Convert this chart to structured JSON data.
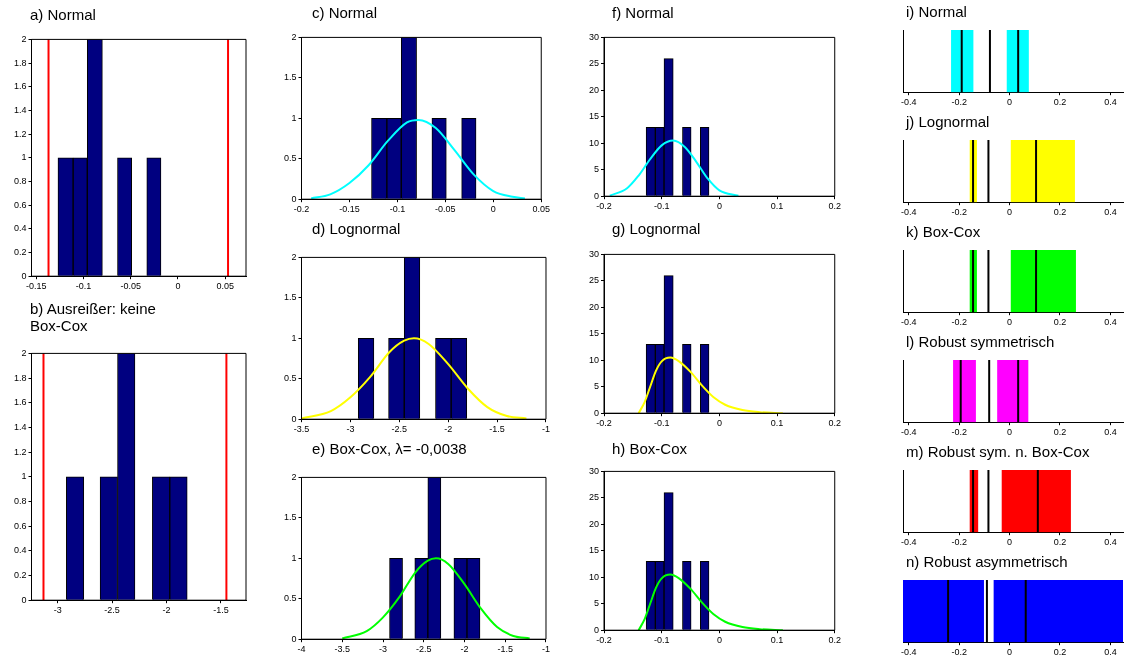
{
  "chart_data": [
    {
      "type": "histogram",
      "title": "a) Normal",
      "bins": [
        -0.127,
        -0.111,
        -0.096,
        -0.08,
        -0.064,
        -0.049,
        -0.033,
        -0.018
      ],
      "values": [
        1,
        1,
        2,
        0,
        1,
        0,
        1
      ],
      "color": "#000080",
      "xlim": [
        -0.155,
        0.072
      ],
      "xticks": [
        -0.15,
        -0.1,
        -0.05,
        0,
        0.05
      ],
      "ylim": [
        0,
        2
      ],
      "yticks": [
        0,
        0.2,
        0.4,
        0.6,
        0.8,
        1,
        1.2,
        1.4,
        1.6,
        1.8,
        2
      ],
      "grid": false,
      "ref_lines": [
        {
          "axis": "x",
          "value": -0.137,
          "color": "#ff0000"
        },
        {
          "axis": "x",
          "value": 0.053,
          "color": "#ff0000"
        }
      ]
    },
    {
      "type": "histogram",
      "title": "b) Ausreißer: keine Box-Cox",
      "bins": [
        -2.92,
        -2.76,
        -2.61,
        -2.45,
        -2.29,
        -2.13,
        -1.97,
        -1.81
      ],
      "values": [
        1,
        0,
        1,
        2,
        0,
        1,
        1
      ],
      "color": "#000080",
      "xlim": [
        -3.24,
        -1.27
      ],
      "xticks": [
        -3,
        -2.5,
        -2,
        -1.5
      ],
      "ylim": [
        0,
        2
      ],
      "yticks": [
        0,
        0.2,
        0.4,
        0.6,
        0.8,
        1,
        1.2,
        1.4,
        1.6,
        1.8,
        2
      ],
      "grid": false,
      "ref_lines": [
        {
          "axis": "x",
          "value": -3.13,
          "color": "#ff0000"
        },
        {
          "axis": "x",
          "value": -1.45,
          "color": "#ff0000"
        }
      ]
    },
    {
      "type": "histogram",
      "title": "c) Normal",
      "bins": [
        -0.127,
        -0.111,
        -0.096,
        -0.08,
        -0.064,
        -0.049,
        -0.033,
        -0.018
      ],
      "values": [
        1,
        1,
        2,
        0,
        1,
        0,
        1
      ],
      "color": "#000080",
      "xlim": [
        -0.2,
        0.05
      ],
      "xticks": [
        -0.2,
        -0.15,
        -0.1,
        -0.05,
        0,
        0.05
      ],
      "ylim": [
        0,
        2
      ],
      "yticks": [
        0,
        0.5,
        1,
        1.5,
        2
      ],
      "grid": false,
      "series": [
        {
          "type": "line",
          "color": "#00ffff",
          "x": [
            -0.19,
            -0.17,
            -0.15,
            -0.13,
            -0.11,
            -0.09,
            -0.078,
            -0.06,
            -0.04,
            -0.02,
            0,
            0.02,
            0.033
          ],
          "values": [
            0.01,
            0.06,
            0.2,
            0.42,
            0.72,
            0.95,
            0.98,
            0.88,
            0.6,
            0.3,
            0.1,
            0.03,
            0.01
          ]
        }
      ]
    },
    {
      "type": "histogram",
      "title": "d) Lognormal",
      "bins": [
        -2.92,
        -2.76,
        -2.61,
        -2.45,
        -2.29,
        -2.13,
        -1.97,
        -1.81
      ],
      "values": [
        1,
        0,
        1,
        2,
        0,
        1,
        1
      ],
      "color": "#000080",
      "xlim": [
        -3.5,
        -1
      ],
      "xticks": [
        -3.5,
        -3,
        -2.5,
        -2,
        -1.5,
        -1
      ],
      "ylim": [
        0,
        2
      ],
      "yticks": [
        0,
        0.5,
        1,
        1.5,
        2
      ],
      "grid": false,
      "series": [
        {
          "type": "line",
          "color": "#ffff00",
          "x": [
            -3.5,
            -3.2,
            -3,
            -2.8,
            -2.6,
            -2.45,
            -2.35,
            -2.2,
            -2,
            -1.8,
            -1.6,
            -1.4,
            -1.2
          ],
          "values": [
            0.01,
            0.1,
            0.27,
            0.52,
            0.83,
            0.97,
            1,
            0.93,
            0.68,
            0.38,
            0.15,
            0.04,
            0.01
          ]
        }
      ]
    },
    {
      "type": "histogram",
      "title": "e) Box-Cox, λ= -0,0038",
      "bins": [
        -2.92,
        -2.76,
        -2.61,
        -2.45,
        -2.29,
        -2.13,
        -1.97,
        -1.81
      ],
      "values": [
        1,
        0,
        1,
        2,
        0,
        1,
        1
      ],
      "color": "#000080",
      "xlim": [
        -4,
        -1
      ],
      "xticks": [
        -4,
        -3.5,
        -3,
        -2.5,
        -2,
        -1.5,
        -1
      ],
      "ylim": [
        0,
        2
      ],
      "yticks": [
        0,
        0.5,
        1,
        1.5,
        2
      ],
      "grid": false,
      "series": [
        {
          "type": "line",
          "color": "#00ff00",
          "x": [
            -3.5,
            -3.2,
            -3,
            -2.8,
            -2.6,
            -2.45,
            -2.35,
            -2.2,
            -2,
            -1.8,
            -1.6,
            -1.4,
            -1.2
          ],
          "values": [
            0.01,
            0.1,
            0.27,
            0.52,
            0.83,
            0.97,
            1,
            0.93,
            0.68,
            0.38,
            0.15,
            0.04,
            0.01
          ]
        }
      ]
    },
    {
      "type": "histogram",
      "title": "f) Normal",
      "bins": [
        -0.127,
        -0.111,
        -0.096,
        -0.08,
        -0.064,
        -0.049,
        -0.033,
        -0.018
      ],
      "values": [
        13,
        13,
        26,
        0,
        13,
        0,
        13
      ],
      "color": "#000080",
      "xlim": [
        -0.2,
        0.2
      ],
      "xticks": [
        -0.2,
        -0.1,
        0,
        0.1,
        0.2
      ],
      "ylim": [
        0,
        30
      ],
      "yticks": [
        0,
        5,
        10,
        15,
        20,
        25,
        30
      ],
      "grid": false,
      "series": [
        {
          "type": "line",
          "color": "#00ffff",
          "x": [
            -0.19,
            -0.16,
            -0.14,
            -0.12,
            -0.1,
            -0.08,
            -0.06,
            -0.04,
            -0.02,
            0,
            0.033
          ],
          "values": [
            0.1,
            1.5,
            3.9,
            7,
            9.6,
            10.5,
            9.3,
            6.5,
            3.3,
            1.1,
            0.1
          ]
        }
      ]
    },
    {
      "type": "histogram",
      "title": "g) Lognormal",
      "bins": [
        -0.127,
        -0.111,
        -0.096,
        -0.08,
        -0.064,
        -0.049,
        -0.033,
        -0.018
      ],
      "values": [
        13,
        13,
        26,
        0,
        13,
        0,
        13
      ],
      "color": "#000080",
      "xlim": [
        -0.2,
        0.2
      ],
      "xticks": [
        -0.2,
        -0.1,
        0,
        0.1,
        0.2
      ],
      "ylim": [
        0,
        30
      ],
      "yticks": [
        0,
        5,
        10,
        15,
        20,
        25,
        30
      ],
      "grid": false,
      "series": [
        {
          "type": "line",
          "color": "#ffff00",
          "x": [
            -0.14,
            -0.13,
            -0.12,
            -0.11,
            -0.1,
            -0.085,
            -0.07,
            -0.05,
            -0.03,
            -0.01,
            0.01,
            0.04,
            0.07,
            0.11
          ],
          "values": [
            0,
            2,
            5,
            8,
            9.8,
            10.5,
            9.8,
            7.8,
            5.2,
            3,
            1.6,
            0.6,
            0.2,
            0
          ]
        }
      ]
    },
    {
      "type": "histogram",
      "title": "h) Box-Cox",
      "bins": [
        -0.127,
        -0.111,
        -0.096,
        -0.08,
        -0.064,
        -0.049,
        -0.033,
        -0.018
      ],
      "values": [
        13,
        13,
        26,
        0,
        13,
        0,
        13
      ],
      "color": "#000080",
      "xlim": [
        -0.2,
        0.2
      ],
      "xticks": [
        -0.2,
        -0.1,
        0,
        0.1,
        0.2
      ],
      "ylim": [
        0,
        30
      ],
      "yticks": [
        0,
        5,
        10,
        15,
        20,
        25,
        30
      ],
      "grid": false,
      "series": [
        {
          "type": "line",
          "color": "#00ff00",
          "x": [
            -0.14,
            -0.13,
            -0.12,
            -0.11,
            -0.1,
            -0.085,
            -0.07,
            -0.05,
            -0.03,
            -0.01,
            0.01,
            0.04,
            0.07,
            0.11
          ],
          "values": [
            0,
            2,
            5,
            8,
            9.8,
            10.5,
            9.8,
            7.8,
            5.2,
            3,
            1.6,
            0.6,
            0.2,
            0
          ]
        }
      ]
    },
    {
      "type": "bar",
      "orientation": "horizontal",
      "title": "i) Normal",
      "categories": [
        null
      ],
      "xlim": [
        -0.423,
        0.45
      ],
      "xticks": [
        -0.4,
        -0.2,
        0,
        0.2,
        0.4
      ],
      "tick_labels": "x",
      "grid": false,
      "series": [
        {
          "color": "#00ffff",
          "base": [
            -0.231
          ],
          "values": [
            0.086
          ]
        },
        {
          "color": "#00ffff",
          "base": [
            -0.01
          ],
          "values": [
            0.085
          ]
        }
      ],
      "ref_lines": [
        {
          "axis": "x",
          "value": -0.19,
          "color": "#000000"
        },
        {
          "axis": "x",
          "value": -0.078,
          "color": "#000000"
        },
        {
          "axis": "x",
          "value": 0.034,
          "color": "#000000"
        }
      ]
    },
    {
      "type": "bar",
      "orientation": "horizontal",
      "title": "j) Lognormal",
      "categories": [
        null
      ],
      "xlim": [
        -0.423,
        0.45
      ],
      "xticks": [
        -0.4,
        -0.2,
        0,
        0.2,
        0.4
      ],
      "tick_labels": "x",
      "grid": false,
      "series": [
        {
          "color": "#ffff00",
          "base": [
            -0.157
          ],
          "values": [
            0.026
          ]
        },
        {
          "color": "#ffff00",
          "base": [
            0.006
          ],
          "values": [
            0.252
          ]
        }
      ],
      "ref_lines": [
        {
          "axis": "x",
          "value": -0.145,
          "color": "#000000"
        },
        {
          "axis": "x",
          "value": -0.084,
          "color": "#000000"
        },
        {
          "axis": "x",
          "value": 0.105,
          "color": "#000000"
        }
      ]
    },
    {
      "type": "bar",
      "orientation": "horizontal",
      "title": "k) Box-Cox",
      "categories": [
        null
      ],
      "xlim": [
        -0.423,
        0.45
      ],
      "xticks": [
        -0.4,
        -0.2,
        0,
        0.2,
        0.4
      ],
      "tick_labels": "x",
      "grid": false,
      "series": [
        {
          "color": "#00ff00",
          "base": [
            -0.157
          ],
          "values": [
            0.026
          ]
        },
        {
          "color": "#00ff00",
          "base": [
            0.006
          ],
          "values": [
            0.256
          ]
        }
      ],
      "ref_lines": [
        {
          "axis": "x",
          "value": -0.145,
          "color": "#000000"
        },
        {
          "axis": "x",
          "value": -0.084,
          "color": "#000000"
        },
        {
          "axis": "x",
          "value": 0.105,
          "color": "#000000"
        }
      ]
    },
    {
      "type": "bar",
      "orientation": "horizontal",
      "title": "l) Robust symmetrisch",
      "categories": [
        null
      ],
      "xlim": [
        -0.423,
        0.45
      ],
      "xticks": [
        -0.4,
        -0.2,
        0,
        0.2,
        0.4
      ],
      "tick_labels": "x",
      "grid": false,
      "series": [
        {
          "color": "#ff00ff",
          "base": [
            -0.223
          ],
          "values": [
            0.088
          ]
        },
        {
          "color": "#ff00ff",
          "base": [
            -0.048
          ],
          "values": [
            0.121
          ]
        }
      ],
      "ref_lines": [
        {
          "axis": "x",
          "value": -0.194,
          "color": "#000000"
        },
        {
          "axis": "x",
          "value": -0.081,
          "color": "#000000"
        },
        {
          "axis": "x",
          "value": 0.034,
          "color": "#000000"
        }
      ]
    },
    {
      "type": "bar",
      "orientation": "horizontal",
      "title": "m) Robust sym. n. Box-Cox",
      "categories": [
        null
      ],
      "xlim": [
        -0.423,
        0.45
      ],
      "xticks": [
        -0.4,
        -0.2,
        0,
        0.2,
        0.4
      ],
      "tick_labels": "x",
      "grid": false,
      "series": [
        {
          "color": "#ff0000",
          "base": [
            -0.157
          ],
          "values": [
            0.031
          ]
        },
        {
          "color": "#ff0000",
          "base": [
            -0.03
          ],
          "values": [
            0.272
          ]
        }
      ],
      "ref_lines": [
        {
          "axis": "x",
          "value": -0.145,
          "color": "#000000"
        },
        {
          "axis": "x",
          "value": -0.084,
          "color": "#000000"
        },
        {
          "axis": "x",
          "value": 0.112,
          "color": "#000000"
        }
      ]
    },
    {
      "type": "bar",
      "orientation": "horizontal",
      "title": "n) Robust asymmetrisch",
      "categories": [
        null
      ],
      "xlim": [
        -0.423,
        0.45
      ],
      "xticks": [
        -0.4,
        -0.2,
        0,
        0.2,
        0.4
      ],
      "tick_labels": "x",
      "grid": false,
      "series": [
        {
          "color": "#0000ff",
          "base": [
            -0.423
          ],
          "values": [
            0.32
          ]
        },
        {
          "color": "#0000ff",
          "base": [
            -0.062
          ],
          "values": [
            0.512
          ]
        }
      ],
      "ref_lines": [
        {
          "axis": "x",
          "value": -0.244,
          "color": "#000000"
        },
        {
          "axis": "x",
          "value": -0.09,
          "color": "#000000"
        },
        {
          "axis": "x",
          "value": 0.064,
          "color": "#000000"
        }
      ]
    }
  ]
}
